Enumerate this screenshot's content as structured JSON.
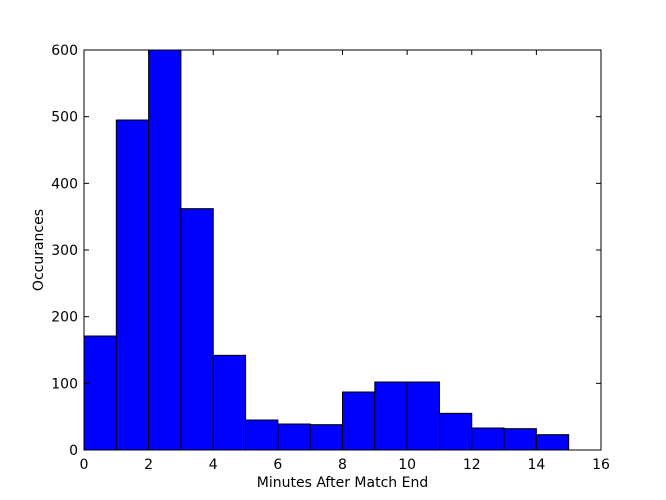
{
  "chart_data": {
    "type": "bar",
    "title": "",
    "xlabel": "Minutes After Match End",
    "ylabel": "Occurances",
    "xlim": [
      0,
      16
    ],
    "ylim": [
      0,
      600
    ],
    "grid": false,
    "bar_color": "#0000ff",
    "edge_color": "#000000",
    "bins": [
      {
        "start": 0,
        "end": 1,
        "value": 171
      },
      {
        "start": 1,
        "end": 2,
        "value": 495
      },
      {
        "start": 2,
        "end": 3,
        "value": 600
      },
      {
        "start": 3,
        "end": 4,
        "value": 362
      },
      {
        "start": 4,
        "end": 5,
        "value": 142
      },
      {
        "start": 5,
        "end": 6,
        "value": 45
      },
      {
        "start": 6,
        "end": 7,
        "value": 39
      },
      {
        "start": 7,
        "end": 8,
        "value": 38
      },
      {
        "start": 8,
        "end": 9,
        "value": 87
      },
      {
        "start": 9,
        "end": 10,
        "value": 102
      },
      {
        "start": 10,
        "end": 11,
        "value": 102
      },
      {
        "start": 11,
        "end": 12,
        "value": 55
      },
      {
        "start": 12,
        "end": 13,
        "value": 33
      },
      {
        "start": 13,
        "end": 14,
        "value": 32
      },
      {
        "start": 14,
        "end": 15,
        "value": 23
      }
    ],
    "x_ticks": [
      0,
      2,
      4,
      6,
      8,
      10,
      12,
      14,
      16
    ],
    "y_ticks": [
      0,
      100,
      200,
      300,
      400,
      500,
      600
    ]
  }
}
